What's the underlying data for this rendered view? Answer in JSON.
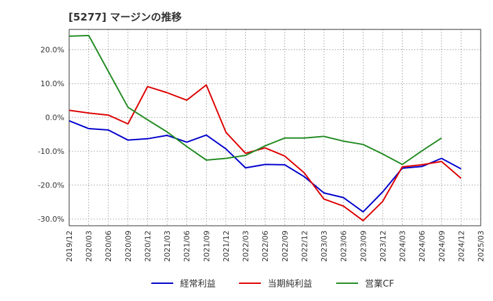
{
  "title": "[5277]  マージンの推移",
  "chart_data": {
    "type": "line",
    "title": "[5277]  マージンの推移",
    "xlabel": "",
    "ylabel": "",
    "ylim": [
      -32,
      26
    ],
    "y_ticks": [
      20,
      10,
      0,
      -10,
      -20,
      -30
    ],
    "y_tick_labels": [
      "20.0%",
      "10.0%",
      "0.0%",
      "-10.0%",
      "-20.0%",
      "-30.0%"
    ],
    "x_tick_labels": [
      "2019/12",
      "2020/03",
      "2020/06",
      "2020/09",
      "2020/12",
      "2021/03",
      "2021/06",
      "2021/09",
      "2021/12",
      "2022/03",
      "2022/06",
      "2022/09",
      "2022/12",
      "2023/03",
      "2023/06",
      "2023/09",
      "2023/12",
      "2024/03",
      "2024/06",
      "2024/09",
      "2024/12",
      "2025/03"
    ],
    "grid": true,
    "legend_position": "bottom",
    "series": [
      {
        "name": "経常利益",
        "color": "#0000cc",
        "values": [
          -1.0,
          -3.3,
          -3.7,
          -6.7,
          -6.3,
          -5.3,
          -7.3,
          -5.2,
          -9.3,
          -14.9,
          -13.9,
          -14.0,
          -17.5,
          -22.3,
          -23.7,
          -27.9,
          -22.0,
          -15.0,
          -14.5,
          -12.1,
          -15.2,
          null
        ]
      },
      {
        "name": "当期純利益",
        "color": "#dd0000",
        "values": [
          2.1,
          1.3,
          0.7,
          -1.9,
          9.1,
          7.3,
          5.1,
          9.6,
          -4.4,
          -10.6,
          -9.0,
          -11.4,
          -16.4,
          -24.1,
          -26.2,
          -30.5,
          -24.8,
          -14.6,
          -14.0,
          -13.0,
          -18.0,
          null
        ]
      },
      {
        "name": "営業CF",
        "color": "#228b22",
        "values": [
          24.0,
          24.2,
          13.6,
          3.0,
          -0.7,
          -4.3,
          -8.6,
          -12.6,
          -12.1,
          -11.2,
          -8.4,
          -6.1,
          -6.1,
          -5.6,
          -7.0,
          -8.0,
          -10.8,
          -13.9,
          -9.9,
          -6.1,
          null,
          null
        ]
      }
    ]
  }
}
